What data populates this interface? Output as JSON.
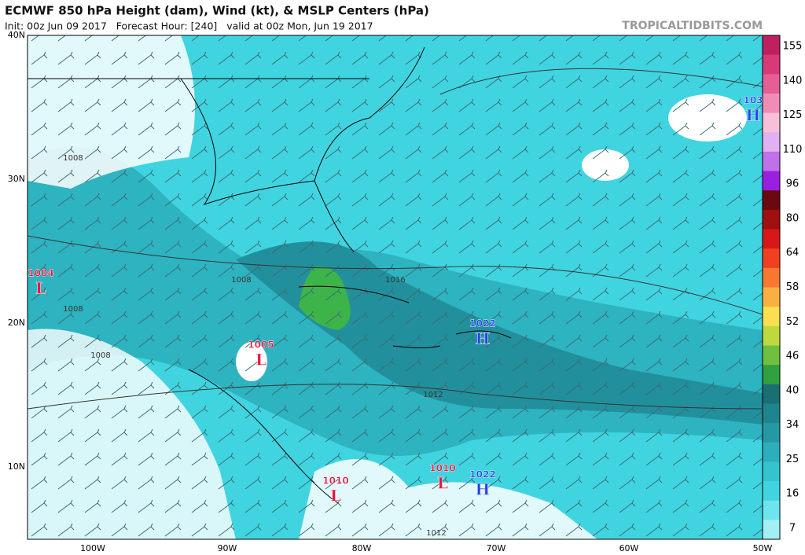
{
  "header": {
    "title": "ECMWF 850 hPa Height (dam), Wind (kt), & MSLP Centers (hPa)",
    "subtitle": "Init: 00z Jun 09 2017   Forecast Hour: [240]   valid at 00z Mon, Jun 19 2017",
    "site": "TROPICALTIDBITS.COM"
  },
  "map": {
    "lat_labels": [
      "40N",
      "30N",
      "20N",
      "10N"
    ],
    "lon_labels": [
      "100W",
      "90W",
      "80W",
      "70W",
      "60W",
      "50W"
    ],
    "centers": [
      {
        "pressure": "1004",
        "type": "L"
      },
      {
        "pressure": "1005",
        "type": "L"
      },
      {
        "pressure": "1010",
        "type": "L"
      },
      {
        "pressure": "1010",
        "type": "L"
      },
      {
        "pressure": "1022",
        "type": "H"
      },
      {
        "pressure": "1022",
        "type": "H"
      },
      {
        "pressure": "103",
        "type": "H"
      }
    ],
    "isobar_labels": [
      "1008",
      "1008",
      "1008",
      "1008",
      "1016",
      "1012",
      "1012"
    ]
  },
  "colorbar": {
    "labels": [
      "155",
      "140",
      "125",
      "110",
      "96",
      "80",
      "64",
      "58",
      "52",
      "46",
      "40",
      "34",
      "25",
      "16",
      "7"
    ]
  }
}
